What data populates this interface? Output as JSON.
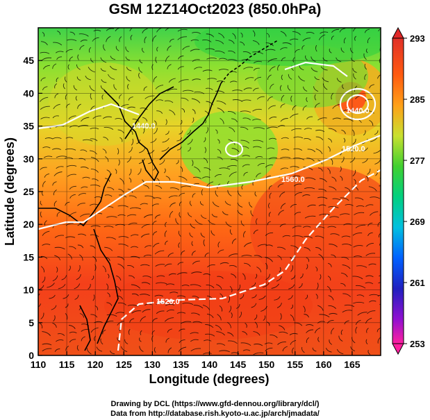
{
  "title": "GSM 12Z14Oct2023 (850.0hPa)",
  "xaxis": {
    "label": "Longitude (degrees)",
    "ticks": [
      "110",
      "115",
      "120",
      "125",
      "130",
      "135",
      "140",
      "145",
      "150",
      "155",
      "160",
      "165"
    ],
    "range": [
      110,
      170
    ]
  },
  "yaxis": {
    "label": "Latitude (degrees)",
    "ticks": [
      "0",
      "5",
      "10",
      "15",
      "20",
      "25",
      "30",
      "35",
      "40",
      "45"
    ],
    "range": [
      0,
      50
    ]
  },
  "colorbar": {
    "labels": [
      "293",
      "285",
      "277",
      "269",
      "261",
      "253"
    ],
    "range": [
      253,
      293
    ],
    "colors": [
      "#ff1e8c",
      "#b000d0",
      "#2020c8",
      "#0070ff",
      "#00c8c8",
      "#00d070",
      "#60d020",
      "#c8e030",
      "#f0c020",
      "#ff8010",
      "#ff3a10",
      "#e02020"
    ]
  },
  "contours": [
    {
      "label": "1520.0"
    },
    {
      "label": "1560.0"
    },
    {
      "label": "1520.0"
    },
    {
      "label": "1440.0"
    },
    {
      "label": "1440.0"
    }
  ],
  "credits": {
    "line1": "Drawing by DCL (https://www.gfd-dennou.org/library/dcl/)",
    "line2": "Data from http://database.rish.kyoto-u.ac.jp/arch/jmadata/"
  },
  "colors": {
    "warm": "#f23a14",
    "mid": "#ff9a1a",
    "cool": "#5ed52a",
    "contour": "#ffffff",
    "streamline": "#000000"
  }
}
